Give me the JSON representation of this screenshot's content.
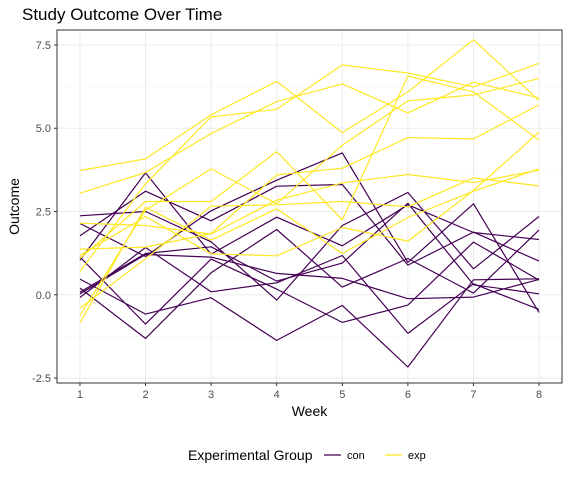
{
  "chart_data": {
    "type": "line",
    "title": "Study Outcome Over Time",
    "xlabel": "Week",
    "ylabel": "Outcome",
    "x": [
      1,
      2,
      3,
      4,
      5,
      6,
      7,
      8
    ],
    "x_ticks": [
      "1",
      "2",
      "3",
      "4",
      "5",
      "6",
      "7",
      "8"
    ],
    "y_ticks": [
      {
        "value": -2.5,
        "label": "-2.5"
      },
      {
        "value": 0,
        "label": "0.0"
      },
      {
        "value": 2.5,
        "label": "2.5"
      },
      {
        "value": 5,
        "label": "5.0"
      },
      {
        "value": 7.5,
        "label": "7.5"
      }
    ],
    "xlim": [
      0.65,
      8.35
    ],
    "ylim": [
      -2.65,
      7.95
    ],
    "grid": true,
    "legend": {
      "position": "bottom",
      "title": "Experimental Group",
      "entries": [
        {
          "label": "con",
          "color": "#440154"
        },
        {
          "label": "exp",
          "color": "#FDE725"
        }
      ]
    },
    "series": [
      {
        "group": "con",
        "color": "#440154",
        "values": [
          0.2,
          -1.31,
          0.66,
          1.96,
          0.23,
          1.09,
          0.05,
          1.94
        ]
      },
      {
        "group": "con",
        "color": "#440154",
        "values": [
          1.13,
          -0.88,
          1.07,
          0.17,
          -0.83,
          -0.31,
          1.58,
          0.44
        ]
      },
      {
        "group": "con",
        "color": "#440154",
        "values": [
          1.77,
          3.11,
          2.22,
          3.26,
          3.31,
          0.89,
          1.88,
          1.01
        ]
      },
      {
        "group": "con",
        "color": "#440154",
        "values": [
          1.04,
          3.66,
          1.22,
          2.33,
          1.47,
          2.7,
          1.87,
          1.66
        ]
      },
      {
        "group": "con",
        "color": "#440154",
        "values": [
          0.47,
          -0.58,
          -0.09,
          -1.37,
          -0.32,
          -2.17,
          0.45,
          0.48
        ]
      },
      {
        "group": "con",
        "color": "#440154",
        "values": [
          2.37,
          2.5,
          1.59,
          -0.16,
          2.08,
          3.07,
          0.78,
          2.35
        ]
      },
      {
        "group": "con",
        "color": "#440154",
        "values": [
          0.03,
          1.21,
          1.13,
          0.64,
          0.49,
          -0.12,
          -0.07,
          0.46
        ]
      },
      {
        "group": "con",
        "color": "#440154",
        "values": [
          -0.08,
          1.42,
          0.09,
          0.36,
          1.18,
          -1.16,
          0.33,
          -0.44
        ]
      },
      {
        "group": "con",
        "color": "#440154",
        "values": [
          0.08,
          1.24,
          1.44,
          0.41,
          0.95,
          2.75,
          0.3,
          0.03
        ]
      },
      {
        "group": "con",
        "color": "#440154",
        "values": [
          2.14,
          1.15,
          2.52,
          3.44,
          4.26,
          0.97,
          2.73,
          -0.53
        ]
      },
      {
        "group": "exp",
        "color": "#FDE725",
        "values": [
          3.05,
          3.67,
          4.84,
          5.8,
          6.33,
          5.46,
          6.38,
          5.91
        ]
      },
      {
        "group": "exp",
        "color": "#FDE725",
        "values": [
          -0.84,
          2.63,
          1.64,
          2.58,
          1.24,
          2.32,
          3.11,
          3.78
        ]
      },
      {
        "group": "exp",
        "color": "#FDE725",
        "values": [
          2.15,
          2.08,
          1.82,
          2.84,
          3.36,
          3.61,
          3.37,
          3.74
        ]
      },
      {
        "group": "exp",
        "color": "#FDE725",
        "values": [
          -0.62,
          2.54,
          3.78,
          2.73,
          4.49,
          5.82,
          6.0,
          6.49
        ]
      },
      {
        "group": "exp",
        "color": "#FDE725",
        "values": [
          0.7,
          3.33,
          5.34,
          5.57,
          6.9,
          6.66,
          6.24,
          6.95
        ]
      },
      {
        "group": "exp",
        "color": "#FDE725",
        "values": [
          3.73,
          4.08,
          5.4,
          6.41,
          4.87,
          6.09,
          7.66,
          5.83
        ]
      },
      {
        "group": "exp",
        "color": "#FDE725",
        "values": [
          1.18,
          2.35,
          1.23,
          1.17,
          2.02,
          1.61,
          3.13,
          4.88
        ]
      },
      {
        "group": "exp",
        "color": "#FDE725",
        "values": [
          1.37,
          1.43,
          1.84,
          3.6,
          3.8,
          4.72,
          4.68,
          5.7
        ]
      },
      {
        "group": "exp",
        "color": "#FDE725",
        "values": [
          -0.4,
          1.08,
          2.66,
          2.7,
          2.8,
          2.64,
          3.51,
          3.27
        ]
      },
      {
        "group": "exp",
        "color": "#FDE725",
        "values": [
          1.09,
          2.8,
          2.8,
          4.3,
          2.25,
          6.57,
          6.09,
          4.64
        ]
      }
    ]
  }
}
